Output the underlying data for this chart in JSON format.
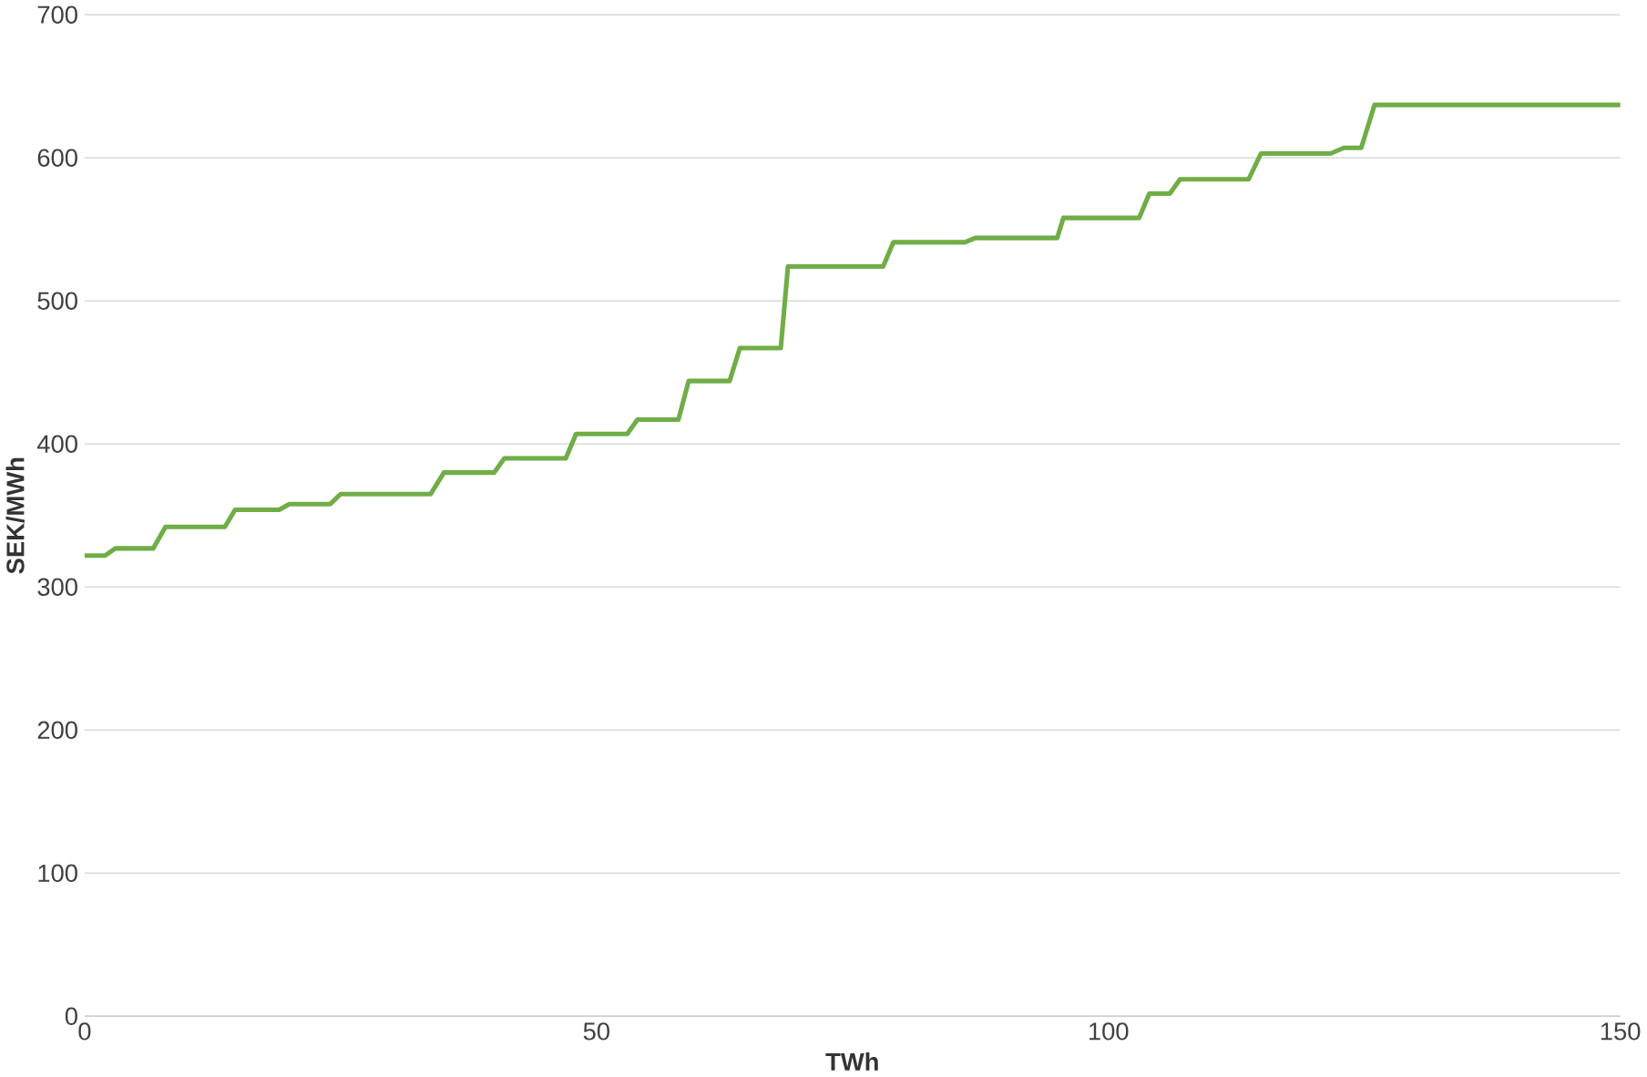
{
  "chart_data": {
    "type": "line",
    "xlabel": "TWh",
    "ylabel": "SEK/MWh",
    "xlim": [
      0,
      150
    ],
    "xticks": [
      0,
      50,
      100,
      150
    ],
    "ylim": [
      0,
      700
    ],
    "yticks": [
      0,
      100,
      200,
      300,
      400,
      500,
      600,
      700
    ],
    "grid": "y",
    "line_style": "solid",
    "series": [
      {
        "color": "#70ad47",
        "x": [
          0,
          2,
          3,
          6.7,
          7.9,
          13.7,
          14.7,
          19,
          20,
          24,
          25,
          33.8,
          35.1,
          40,
          41,
          47,
          48,
          53,
          54,
          58,
          59,
          63,
          64,
          68,
          68.7,
          78,
          79,
          86,
          87,
          95,
          95.6,
          103,
          104,
          106,
          107,
          113.7,
          114.9,
          121.7,
          123,
          124.7,
          126,
          150
        ],
        "values": [
          322,
          322,
          327,
          327,
          342,
          342,
          354,
          354,
          358,
          358,
          365,
          365,
          380,
          380,
          390,
          390,
          407,
          407,
          417,
          417,
          444,
          444,
          467,
          467,
          524,
          524,
          541,
          541,
          544,
          544,
          558,
          558,
          575,
          575,
          585,
          585,
          603,
          603,
          607,
          607,
          637,
          637
        ]
      }
    ]
  }
}
